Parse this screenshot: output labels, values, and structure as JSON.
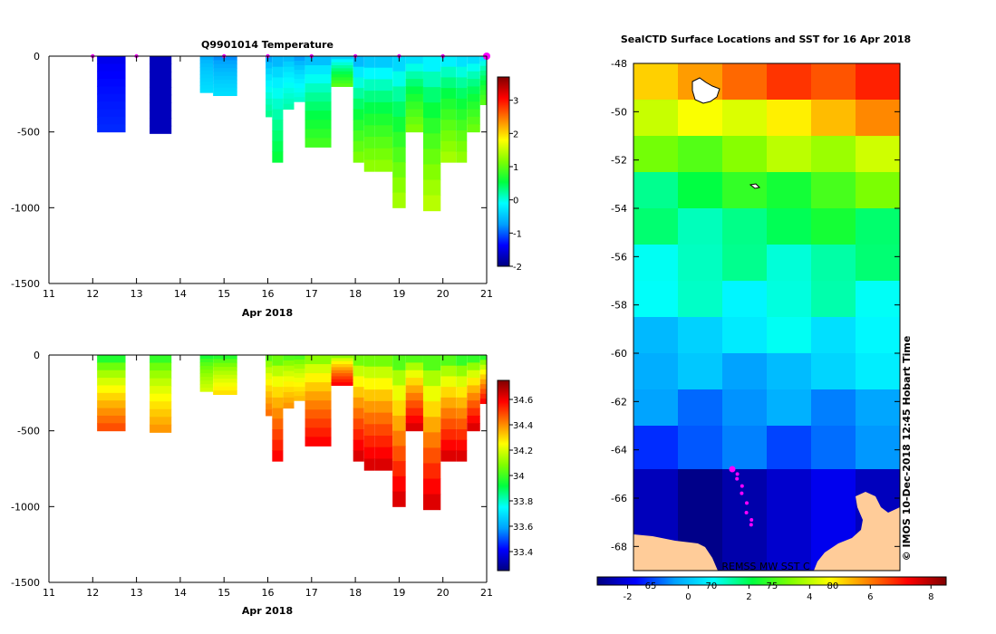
{
  "panels": {
    "temperature": {
      "title": "Q9901014  Temperature",
      "xlabel": "Apr 2018",
      "x_ticks": [
        "11",
        "12",
        "13",
        "14",
        "15",
        "16",
        "17",
        "18",
        "19",
        "20",
        "21"
      ],
      "y_ticks": [
        "0",
        "-500",
        "-1000",
        "-1500"
      ],
      "colorbar_ticks": [
        "3",
        "2",
        "1",
        "0",
        "-1",
        "-2"
      ],
      "colorbar_colors": [
        "#000080",
        "#0000ff",
        "#00a0ff",
        "#00ffff",
        "#00ff40",
        "#80ff00",
        "#ffff00",
        "#ff8000",
        "#ff0000",
        "#800000"
      ]
    },
    "salinity": {
      "xlabel": "Apr 2018",
      "x_ticks": [
        "11",
        "12",
        "13",
        "14",
        "15",
        "16",
        "17",
        "18",
        "19",
        "20",
        "21"
      ],
      "y_ticks": [
        "0",
        "-500",
        "-1000",
        "-1500"
      ],
      "colorbar_ticks": [
        "34.6",
        "34.4",
        "34.2",
        "34",
        "33.8",
        "33.6",
        "33.4"
      ],
      "colorbar_colors": [
        "#000080",
        "#0000ff",
        "#00a0ff",
        "#00ffff",
        "#00ff40",
        "#80ff00",
        "#ffff00",
        "#ff8000",
        "#ff0000",
        "#800000"
      ]
    },
    "map": {
      "title": "SealCTD Surface Locations and SST for 16 Apr 2018",
      "lat_ticks": [
        "-48",
        "-50",
        "-52",
        "-54",
        "-56",
        "-58",
        "-60",
        "-62",
        "-64",
        "-66",
        "-68"
      ],
      "colorbar_ticks": [
        "-2",
        "0",
        "2",
        "4",
        "6",
        "8"
      ],
      "colorbar_sub_ticks": [
        "65",
        "70",
        "75",
        "80"
      ],
      "credit": "© IMOS 10-Dec-2018 12:45 Hobart Time",
      "source": "REMSS MW SST C",
      "colorbar_colors": [
        "#000080",
        "#0000ff",
        "#00a0ff",
        "#00ffff",
        "#00ff40",
        "#80ff00",
        "#ffff00",
        "#ff8000",
        "#ff0000",
        "#800000"
      ],
      "land_color": "#ffcc99"
    }
  },
  "chart_data": [
    {
      "type": "heatmap",
      "title": "Q9901014  Temperature",
      "xlabel": "Apr 2018",
      "ylabel": "",
      "xlim": [
        11,
        21
      ],
      "ylim": [
        -1500,
        0
      ],
      "clim": [
        -2,
        3.7
      ],
      "profiles": [
        {
          "x0": 12.1,
          "x1": 12.75,
          "depth": 500,
          "surface": -1.5,
          "deep": -1.2
        },
        {
          "x0": 13.3,
          "x1": 13.8,
          "depth": 510,
          "surface": -1.7,
          "deep": -1.7
        },
        {
          "x0": 14.45,
          "x1": 14.75,
          "depth": 240,
          "surface": -0.7,
          "deep": -0.3
        },
        {
          "x0": 14.75,
          "x1": 15.3,
          "depth": 260,
          "surface": -0.9,
          "deep": -0.3
        },
        {
          "x0": 15.95,
          "x1": 16.1,
          "depth": 400,
          "surface": -0.9,
          "deep": 0.3
        },
        {
          "x0": 16.1,
          "x1": 16.35,
          "depth": 700,
          "surface": -0.8,
          "deep": 0.6
        },
        {
          "x0": 16.35,
          "x1": 16.6,
          "depth": 350,
          "surface": -0.7,
          "deep": 0.2
        },
        {
          "x0": 16.6,
          "x1": 16.85,
          "depth": 300,
          "surface": -0.9,
          "deep": 0.1
        },
        {
          "x0": 16.85,
          "x1": 17.45,
          "depth": 600,
          "surface": -0.8,
          "deep": 0.9
        },
        {
          "x0": 17.45,
          "x1": 17.95,
          "depth": 200,
          "surface": -0.7,
          "deep": 1.0
        },
        {
          "x0": 17.95,
          "x1": 18.2,
          "depth": 700,
          "surface": -0.9,
          "deep": 1.2
        },
        {
          "x0": 18.2,
          "x1": 18.45,
          "depth": 760,
          "surface": -0.8,
          "deep": 1.3
        },
        {
          "x0": 18.45,
          "x1": 18.85,
          "depth": 760,
          "surface": -0.8,
          "deep": 1.3
        },
        {
          "x0": 18.85,
          "x1": 19.15,
          "depth": 1000,
          "surface": -0.7,
          "deep": 1.4
        },
        {
          "x0": 19.15,
          "x1": 19.55,
          "depth": 500,
          "surface": -0.6,
          "deep": 1.2
        },
        {
          "x0": 19.55,
          "x1": 19.95,
          "depth": 1020,
          "surface": -0.5,
          "deep": 1.5
        },
        {
          "x0": 19.95,
          "x1": 20.3,
          "depth": 700,
          "surface": -0.5,
          "deep": 1.4
        },
        {
          "x0": 20.3,
          "x1": 20.55,
          "depth": 700,
          "surface": -0.6,
          "deep": 1.3
        },
        {
          "x0": 20.55,
          "x1": 20.85,
          "depth": 500,
          "surface": -0.6,
          "deep": 1.1
        },
        {
          "x0": 20.85,
          "x1": 21.0,
          "depth": 320,
          "surface": -0.5,
          "deep": 1.0
        }
      ],
      "surface_markers_x": [
        12,
        13,
        15,
        16,
        17,
        18,
        19,
        20,
        21
      ]
    },
    {
      "type": "heatmap",
      "title": "",
      "xlabel": "Apr 2018",
      "ylabel": "",
      "xlim": [
        11,
        21
      ],
      "ylim": [
        -1500,
        0
      ],
      "clim": [
        33.25,
        34.75
      ],
      "profiles": [
        {
          "x0": 12.1,
          "x1": 12.75,
          "depth": 500,
          "surface": 33.85,
          "deep": 34.5
        },
        {
          "x0": 13.3,
          "x1": 13.8,
          "depth": 510,
          "surface": 33.9,
          "deep": 34.4
        },
        {
          "x0": 14.45,
          "x1": 14.75,
          "depth": 240,
          "surface": 33.9,
          "deep": 34.2
        },
        {
          "x0": 14.75,
          "x1": 15.3,
          "depth": 260,
          "surface": 33.9,
          "deep": 34.3
        },
        {
          "x0": 15.95,
          "x1": 16.1,
          "depth": 400,
          "surface": 33.95,
          "deep": 34.45
        },
        {
          "x0": 16.1,
          "x1": 16.35,
          "depth": 700,
          "surface": 33.95,
          "deep": 34.6
        },
        {
          "x0": 16.35,
          "x1": 16.6,
          "depth": 350,
          "surface": 33.95,
          "deep": 34.4
        },
        {
          "x0": 16.6,
          "x1": 16.85,
          "depth": 300,
          "surface": 33.95,
          "deep": 34.35
        },
        {
          "x0": 16.85,
          "x1": 17.45,
          "depth": 600,
          "surface": 34.0,
          "deep": 34.6
        },
        {
          "x0": 17.45,
          "x1": 17.95,
          "depth": 200,
          "surface": 34.0,
          "deep": 34.6
        },
        {
          "x0": 17.95,
          "x1": 18.2,
          "depth": 700,
          "surface": 33.95,
          "deep": 34.65
        },
        {
          "x0": 18.2,
          "x1": 18.45,
          "depth": 760,
          "surface": 33.95,
          "deep": 34.65
        },
        {
          "x0": 18.45,
          "x1": 18.85,
          "depth": 760,
          "surface": 33.95,
          "deep": 34.65
        },
        {
          "x0": 18.85,
          "x1": 19.15,
          "depth": 1000,
          "surface": 33.9,
          "deep": 34.65
        },
        {
          "x0": 19.15,
          "x1": 19.55,
          "depth": 500,
          "surface": 33.9,
          "deep": 34.65
        },
        {
          "x0": 19.55,
          "x1": 19.95,
          "depth": 1020,
          "surface": 33.9,
          "deep": 34.65
        },
        {
          "x0": 19.95,
          "x1": 20.3,
          "depth": 700,
          "surface": 33.9,
          "deep": 34.65
        },
        {
          "x0": 20.3,
          "x1": 20.55,
          "depth": 700,
          "surface": 33.85,
          "deep": 34.65
        },
        {
          "x0": 20.55,
          "x1": 20.85,
          "depth": 500,
          "surface": 33.85,
          "deep": 34.65
        },
        {
          "x0": 20.85,
          "x1": 21.0,
          "depth": 320,
          "surface": 33.85,
          "deep": 34.6
        }
      ]
    },
    {
      "type": "heatmap",
      "title": "SealCTD Surface Locations and SST for 16 Apr 2018",
      "ylabel": "",
      "ylim": [
        -69,
        -48
      ],
      "clim": [
        -3,
        8.5
      ],
      "sst_bands": [
        {
          "lat0": -48.0,
          "lat1": -49.5,
          "sst": 6.2
        },
        {
          "lat0": -49.5,
          "lat1": -51.0,
          "sst": 4.8
        },
        {
          "lat0": -51.0,
          "lat1": -52.5,
          "sst": 3.6
        },
        {
          "lat0": -52.5,
          "lat1": -54.0,
          "sst": 2.4
        },
        {
          "lat0": -54.0,
          "lat1": -55.5,
          "sst": 1.8
        },
        {
          "lat0": -55.5,
          "lat1": -57.0,
          "sst": 1.4
        },
        {
          "lat0": -57.0,
          "lat1": -58.5,
          "sst": 1.0
        },
        {
          "lat0": -58.5,
          "lat1": -60.0,
          "sst": 0.5
        },
        {
          "lat0": -60.0,
          "lat1": -61.5,
          "sst": 0.0
        },
        {
          "lat0": -61.5,
          "lat1": -63.0,
          "sst": -0.5
        },
        {
          "lat0": -63.0,
          "lat1": -64.8,
          "sst": -1.0
        },
        {
          "lat0": -64.8,
          "lat1": -69.0,
          "sst": -2.4
        }
      ],
      "seal_track_lat": [
        -64.8,
        -65.0,
        -65.2,
        -65.5,
        -65.8,
        -66.2,
        -66.6,
        -66.9,
        -67.1
      ]
    }
  ]
}
